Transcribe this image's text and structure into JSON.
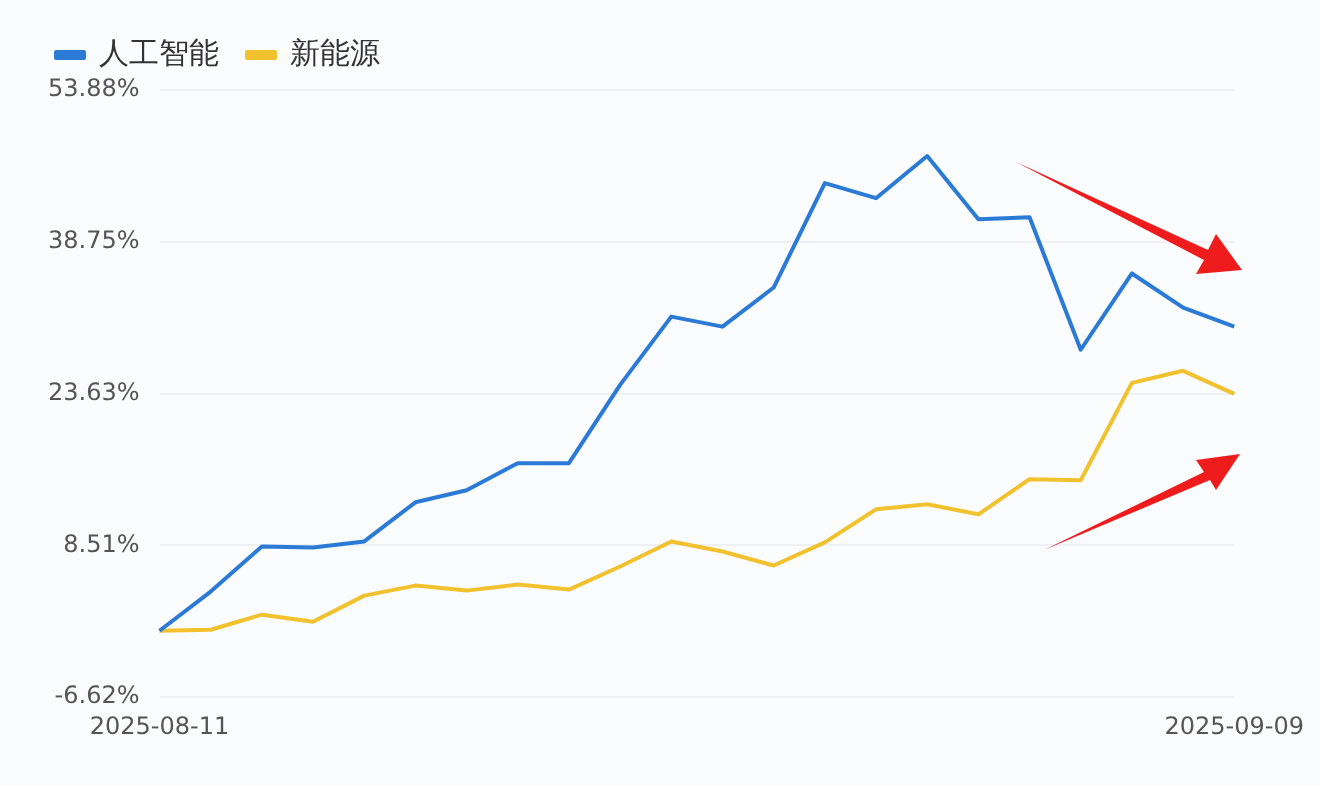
{
  "chart_data": {
    "type": "line",
    "categories": [
      "2025-08-11",
      null,
      null,
      null,
      null,
      null,
      null,
      null,
      null,
      null,
      null,
      null,
      null,
      null,
      null,
      null,
      null,
      null,
      null,
      null,
      null,
      "2025-09-09"
    ],
    "series": [
      {
        "name": "人工智能",
        "color": "#2b7bd6",
        "values": [
          0,
          3.9,
          8.4,
          8.3,
          8.9,
          12.8,
          14.0,
          16.7,
          16.7,
          24.5,
          31.3,
          30.3,
          34.2,
          44.6,
          43.1,
          47.3,
          41.0,
          41.2,
          28.0,
          35.6,
          32.2,
          30.3
        ]
      },
      {
        "name": "新能源",
        "color": "#f2c12e",
        "values": [
          0,
          0.1,
          1.6,
          0.9,
          3.5,
          4.5,
          4.0,
          4.6,
          4.1,
          6.4,
          8.9,
          7.9,
          6.5,
          8.8,
          12.1,
          12.6,
          11.6,
          15.1,
          15.0,
          24.7,
          25.9,
          23.6
        ]
      }
    ],
    "ylim": [
      -6.62,
      53.88
    ],
    "yticks": [
      {
        "value": -6.62,
        "label": "-6.62%"
      },
      {
        "value": 8.51,
        "label": "8.51%"
      },
      {
        "value": 23.63,
        "label": "23.63%"
      },
      {
        "value": 38.75,
        "label": "38.75%"
      },
      {
        "value": 53.88,
        "label": "53.88%"
      }
    ],
    "grid": "y",
    "legend": "top left",
    "marker": "none",
    "line_style": "solid"
  }
}
